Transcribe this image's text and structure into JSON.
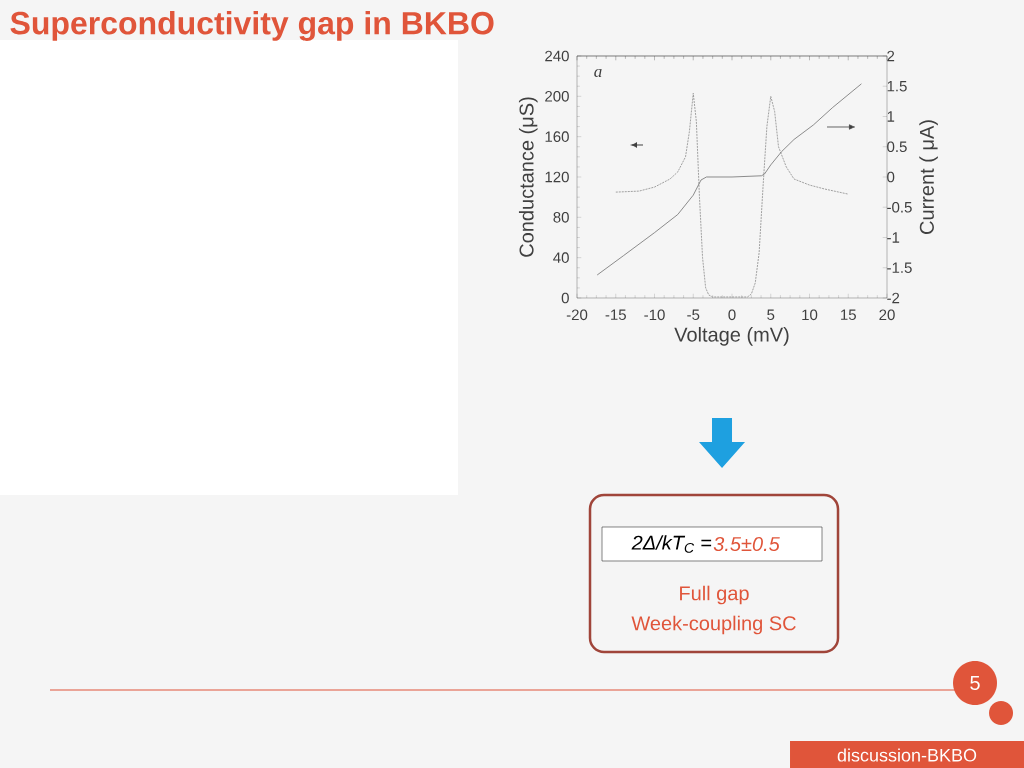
{
  "chart_data": {
    "type": "line",
    "title": "Superconductivity gap in BKBO",
    "xlabel": "Voltage  (mV)",
    "ylabel": "Conductance (μS)",
    "y2label": "Current ( μA)",
    "xlim": [
      -20,
      20
    ],
    "xticks": [
      -20,
      -15,
      -10,
      -5,
      0,
      5,
      10,
      15,
      20
    ],
    "ylim": [
      0,
      240
    ],
    "yticks": [
      0,
      40,
      80,
      120,
      160,
      200,
      240
    ],
    "y2lim": [
      -2,
      2
    ],
    "y2ticks": [
      -2,
      -1.5,
      -1,
      -0.5,
      0,
      0.5,
      1,
      1.5,
      2
    ],
    "annotations": [
      "a",
      "2Δ/kT$_{C}$ =",
      "3.5±0.5",
      "Full gap",
      "Week-coupling SC",
      "5",
      "discussion-BKBO"
    ],
    "series": [
      {
        "color": "#8a8a8a",
        "line_style": "dotted",
        "x": [
          -15,
          -12,
          -10,
          -8,
          -7,
          -6,
          -5.5,
          -5,
          -4.6,
          -4.2,
          -3.8,
          -3.4,
          -3,
          -2.5,
          0,
          2,
          2.5,
          3,
          3.5,
          4,
          4.5,
          5,
          5.5,
          6,
          7,
          8,
          10,
          12,
          15
        ],
        "values": [
          105,
          106,
          110,
          118,
          125,
          140,
          165,
          203,
          175,
          100,
          40,
          10,
          3,
          1,
          1,
          1,
          4,
          15,
          45,
          110,
          170,
          200,
          185,
          150,
          130,
          118,
          112,
          108,
          103
        ]
      },
      {
        "color": "#707070",
        "line_style": "solid",
        "axis": "y2",
        "x": [
          -17.4,
          -14,
          -10,
          -7,
          -5,
          -4,
          -3.3,
          0,
          3.8,
          4.2,
          5,
          6.4,
          8,
          10.5,
          13,
          16.7
        ],
        "values": [
          -1.62,
          -1.3,
          -0.92,
          -0.62,
          -0.3,
          -0.05,
          0,
          0,
          0.02,
          0.05,
          0.2,
          0.42,
          0.62,
          0.86,
          1.15,
          1.54
        ]
      }
    ]
  }
}
